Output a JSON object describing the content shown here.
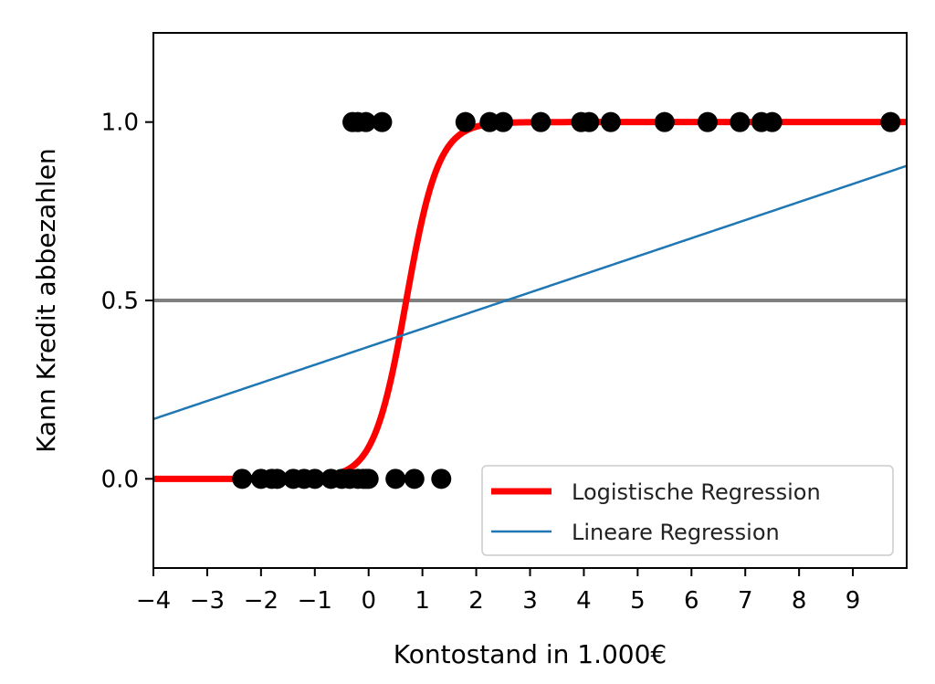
{
  "chart_data": {
    "type": "scatter",
    "title": "",
    "xlabel": "Kontostand in 1.000€",
    "ylabel": "Kann Kredit abbezahlen",
    "xlim": [
      -4,
      10
    ],
    "ylim": [
      -0.25,
      1.25
    ],
    "xticks": [
      -4,
      -3,
      -2,
      -1,
      0,
      1,
      2,
      3,
      4,
      5,
      6,
      7,
      8,
      9
    ],
    "xtick_labels": [
      "−4",
      "−3",
      "−2",
      "−1",
      "0",
      "1",
      "2",
      "3",
      "4",
      "5",
      "6",
      "7",
      "8",
      "9"
    ],
    "yticks": [
      0.0,
      0.5,
      1.0
    ],
    "ytick_labels": [
      "0.0",
      "0.5",
      "1.0"
    ],
    "grid": false,
    "legend_position": "lower-right",
    "points": {
      "color": "#000000",
      "x_class0": [
        -2.35,
        -2.0,
        -1.8,
        -1.7,
        -1.4,
        -1.2,
        -1.0,
        -0.7,
        -0.5,
        -0.35,
        -0.2,
        -0.1,
        -0.05,
        0.0,
        0.5,
        0.85,
        1.35
      ],
      "x_class1": [
        -0.3,
        -0.2,
        -0.05,
        0.25,
        1.8,
        2.25,
        2.5,
        3.2,
        3.95,
        4.1,
        4.5,
        5.5,
        6.3,
        6.9,
        7.3,
        7.5,
        9.7
      ]
    },
    "reference_line": {
      "y": 0.5,
      "color": "#808080"
    },
    "series": [
      {
        "name": "Logistische Regression",
        "kind": "logistic",
        "intercept": -2.33,
        "slope": 3.33,
        "color": "#ff0000"
      },
      {
        "name": "Lineare Regression",
        "kind": "linear",
        "intercept": 0.3703,
        "slope": 0.0507,
        "color": "#1f77b4"
      }
    ]
  }
}
